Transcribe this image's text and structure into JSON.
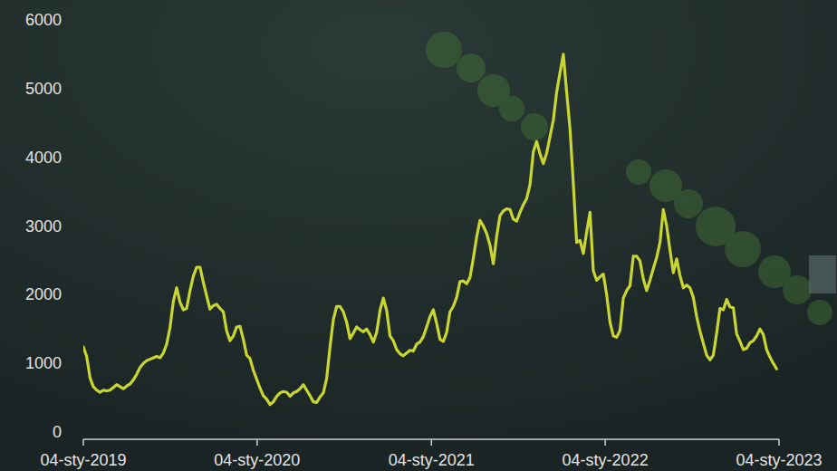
{
  "chart_data": {
    "type": "line",
    "color": "#c9d632",
    "grid": false,
    "x": [
      "2019-01-04",
      "2019-01-11",
      "2019-01-18",
      "2019-01-25",
      "2019-02-01",
      "2019-02-08",
      "2019-02-15",
      "2019-02-22",
      "2019-03-01",
      "2019-03-08",
      "2019-03-15",
      "2019-03-22",
      "2019-03-29",
      "2019-04-05",
      "2019-04-12",
      "2019-04-19",
      "2019-04-26",
      "2019-05-03",
      "2019-05-10",
      "2019-05-17",
      "2019-05-24",
      "2019-05-31",
      "2019-06-07",
      "2019-06-14",
      "2019-06-21",
      "2019-06-28",
      "2019-07-05",
      "2019-07-12",
      "2019-07-19",
      "2019-07-26",
      "2019-08-02",
      "2019-08-09",
      "2019-08-16",
      "2019-08-23",
      "2019-08-30",
      "2019-09-06",
      "2019-09-13",
      "2019-09-20",
      "2019-09-27",
      "2019-10-04",
      "2019-10-11",
      "2019-10-18",
      "2019-10-25",
      "2019-11-01",
      "2019-11-08",
      "2019-11-15",
      "2019-11-22",
      "2019-11-29",
      "2019-12-06",
      "2019-12-13",
      "2019-12-20",
      "2019-12-27",
      "2020-01-03",
      "2020-01-10",
      "2020-01-17",
      "2020-01-24",
      "2020-01-31",
      "2020-02-07",
      "2020-02-14",
      "2020-02-21",
      "2020-02-28",
      "2020-03-06",
      "2020-03-13",
      "2020-03-20",
      "2020-03-27",
      "2020-04-03",
      "2020-04-10",
      "2020-04-17",
      "2020-04-24",
      "2020-05-01",
      "2020-05-08",
      "2020-05-15",
      "2020-05-22",
      "2020-05-29",
      "2020-06-05",
      "2020-06-12",
      "2020-06-19",
      "2020-06-26",
      "2020-07-03",
      "2020-07-10",
      "2020-07-17",
      "2020-07-24",
      "2020-07-31",
      "2020-08-07",
      "2020-08-14",
      "2020-08-21",
      "2020-08-28",
      "2020-09-04",
      "2020-09-11",
      "2020-09-18",
      "2020-09-25",
      "2020-10-02",
      "2020-10-09",
      "2020-10-16",
      "2020-10-23",
      "2020-10-30",
      "2020-11-06",
      "2020-11-13",
      "2020-11-20",
      "2020-11-27",
      "2020-12-04",
      "2020-12-11",
      "2020-12-18",
      "2020-12-25",
      "2021-01-01",
      "2021-01-08",
      "2021-01-15",
      "2021-01-22",
      "2021-01-29",
      "2021-02-05",
      "2021-02-12",
      "2021-02-19",
      "2021-02-26",
      "2021-03-05",
      "2021-03-12",
      "2021-03-19",
      "2021-03-26",
      "2021-04-02",
      "2021-04-09",
      "2021-04-16",
      "2021-04-23",
      "2021-04-30",
      "2021-05-07",
      "2021-05-14",
      "2021-05-21",
      "2021-05-28",
      "2021-06-04",
      "2021-06-11",
      "2021-06-18",
      "2021-06-25",
      "2021-07-02",
      "2021-07-09",
      "2021-07-16",
      "2021-07-23",
      "2021-07-30",
      "2021-08-06",
      "2021-08-13",
      "2021-08-20",
      "2021-08-27",
      "2021-09-03",
      "2021-09-10",
      "2021-09-17",
      "2021-09-24",
      "2021-10-01",
      "2021-10-08",
      "2021-10-15",
      "2021-10-22",
      "2021-10-29",
      "2021-11-05",
      "2021-11-12",
      "2021-11-19",
      "2021-11-26",
      "2021-12-03",
      "2021-12-10",
      "2021-12-17",
      "2021-12-24",
      "2021-12-31",
      "2022-01-07",
      "2022-01-14",
      "2022-01-21",
      "2022-01-28",
      "2022-02-04",
      "2022-02-11",
      "2022-02-18",
      "2022-02-25",
      "2022-03-04",
      "2022-03-11",
      "2022-03-18",
      "2022-03-25",
      "2022-04-01",
      "2022-04-08",
      "2022-04-15",
      "2022-04-22",
      "2022-04-29",
      "2022-05-06",
      "2022-05-13",
      "2022-05-20",
      "2022-05-27",
      "2022-06-03",
      "2022-06-10",
      "2022-06-17",
      "2022-06-24",
      "2022-07-01",
      "2022-07-08",
      "2022-07-15",
      "2022-07-22",
      "2022-07-29",
      "2022-08-05",
      "2022-08-12",
      "2022-08-19",
      "2022-08-26",
      "2022-09-02",
      "2022-09-09",
      "2022-09-16",
      "2022-09-23",
      "2022-09-30",
      "2022-10-07",
      "2022-10-14",
      "2022-10-21",
      "2022-10-28",
      "2022-11-04",
      "2022-11-11",
      "2022-11-18",
      "2022-11-25",
      "2022-12-02",
      "2022-12-09",
      "2022-12-16",
      "2022-12-23",
      "2022-12-30"
    ],
    "values": [
      1240,
      1100,
      790,
      660,
      610,
      580,
      610,
      600,
      610,
      650,
      690,
      660,
      630,
      670,
      700,
      760,
      840,
      940,
      1000,
      1040,
      1060,
      1080,
      1100,
      1080,
      1150,
      1280,
      1520,
      1900,
      2100,
      1890,
      1780,
      1800,
      2060,
      2270,
      2400,
      2400,
      2180,
      1980,
      1790,
      1840,
      1860,
      1800,
      1750,
      1470,
      1330,
      1400,
      1530,
      1540,
      1350,
      1120,
      1070,
      900,
      770,
      640,
      530,
      480,
      400,
      440,
      520,
      570,
      590,
      580,
      520,
      570,
      590,
      630,
      690,
      610,
      530,
      440,
      430,
      510,
      570,
      780,
      1240,
      1640,
      1830,
      1830,
      1750,
      1600,
      1360,
      1440,
      1530,
      1490,
      1460,
      1500,
      1420,
      1310,
      1450,
      1770,
      1950,
      1770,
      1400,
      1330,
      1200,
      1140,
      1110,
      1150,
      1190,
      1180,
      1280,
      1310,
      1390,
      1530,
      1680,
      1780,
      1580,
      1350,
      1320,
      1450,
      1750,
      1830,
      1960,
      2190,
      2200,
      2160,
      2250,
      2530,
      2840,
      3080,
      3000,
      2890,
      2720,
      2450,
      2850,
      3150,
      3220,
      3250,
      3240,
      3100,
      3070,
      3200,
      3310,
      3400,
      3600,
      4080,
      4230,
      4050,
      3910,
      4060,
      4300,
      4540,
      4950,
      5230,
      5500,
      4950,
      4420,
      3620,
      2760,
      2790,
      2600,
      2910,
      3200,
      2350,
      2210,
      2260,
      2300,
      2000,
      1600,
      1400,
      1380,
      1480,
      1950,
      2060,
      2130,
      2560,
      2560,
      2490,
      2230,
      2060,
      2210,
      2380,
      2540,
      2760,
      3240,
      3000,
      2650,
      2320,
      2520,
      2280,
      2100,
      2140,
      2100,
      1960,
      1680,
      1470,
      1290,
      1120,
      1050,
      1120,
      1440,
      1800,
      1780,
      1930,
      1820,
      1810,
      1430,
      1320,
      1200,
      1220,
      1300,
      1330,
      1400,
      1500,
      1420,
      1200,
      1090,
      1000,
      920
    ],
    "xlim": [
      "2019-01-04",
      "2023-01-04"
    ],
    "xticks": [
      {
        "value": "2019-01-04",
        "label": "04-sty-2019"
      },
      {
        "value": "2020-01-04",
        "label": "04-sty-2020"
      },
      {
        "value": "2021-01-04",
        "label": "04-sty-2021"
      },
      {
        "value": "2022-01-04",
        "label": "04-sty-2022"
      },
      {
        "value": "2023-01-04",
        "label": "04-sty-2023"
      }
    ],
    "ylim": [
      0,
      6000
    ],
    "yticks": [
      0,
      1000,
      2000,
      3000,
      4000,
      5000,
      6000
    ]
  }
}
